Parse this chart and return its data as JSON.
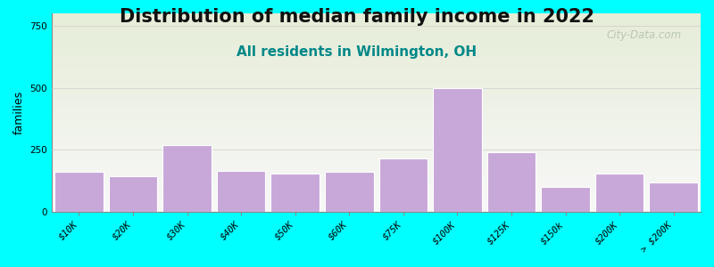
{
  "title": "Distribution of median family income in 2022",
  "subtitle": "All residents in Wilmington, OH",
  "ylabel": "families",
  "categories": [
    "$10K",
    "$20K",
    "$30K",
    "$40K",
    "$50K",
    "$60K",
    "$75K",
    "$100K",
    "$125K",
    "$150k",
    "$200K",
    "> $200K"
  ],
  "values": [
    160,
    145,
    270,
    165,
    155,
    160,
    215,
    500,
    240,
    100,
    155,
    120
  ],
  "bar_color": "#c8a8d8",
  "bar_edge_color": "#ffffff",
  "background_color": "#00ffff",
  "plot_bg_top": "#e6edd8",
  "plot_bg_bottom": "#f8f8f8",
  "title_fontsize": 15,
  "subtitle_fontsize": 11,
  "subtitle_color": "#008888",
  "ylabel_fontsize": 9,
  "tick_fontsize": 7.5,
  "ylim": [
    0,
    800
  ],
  "yticks": [
    0,
    250,
    500,
    750
  ],
  "watermark": "City-Data.com",
  "watermark_color": "#aabaa8"
}
